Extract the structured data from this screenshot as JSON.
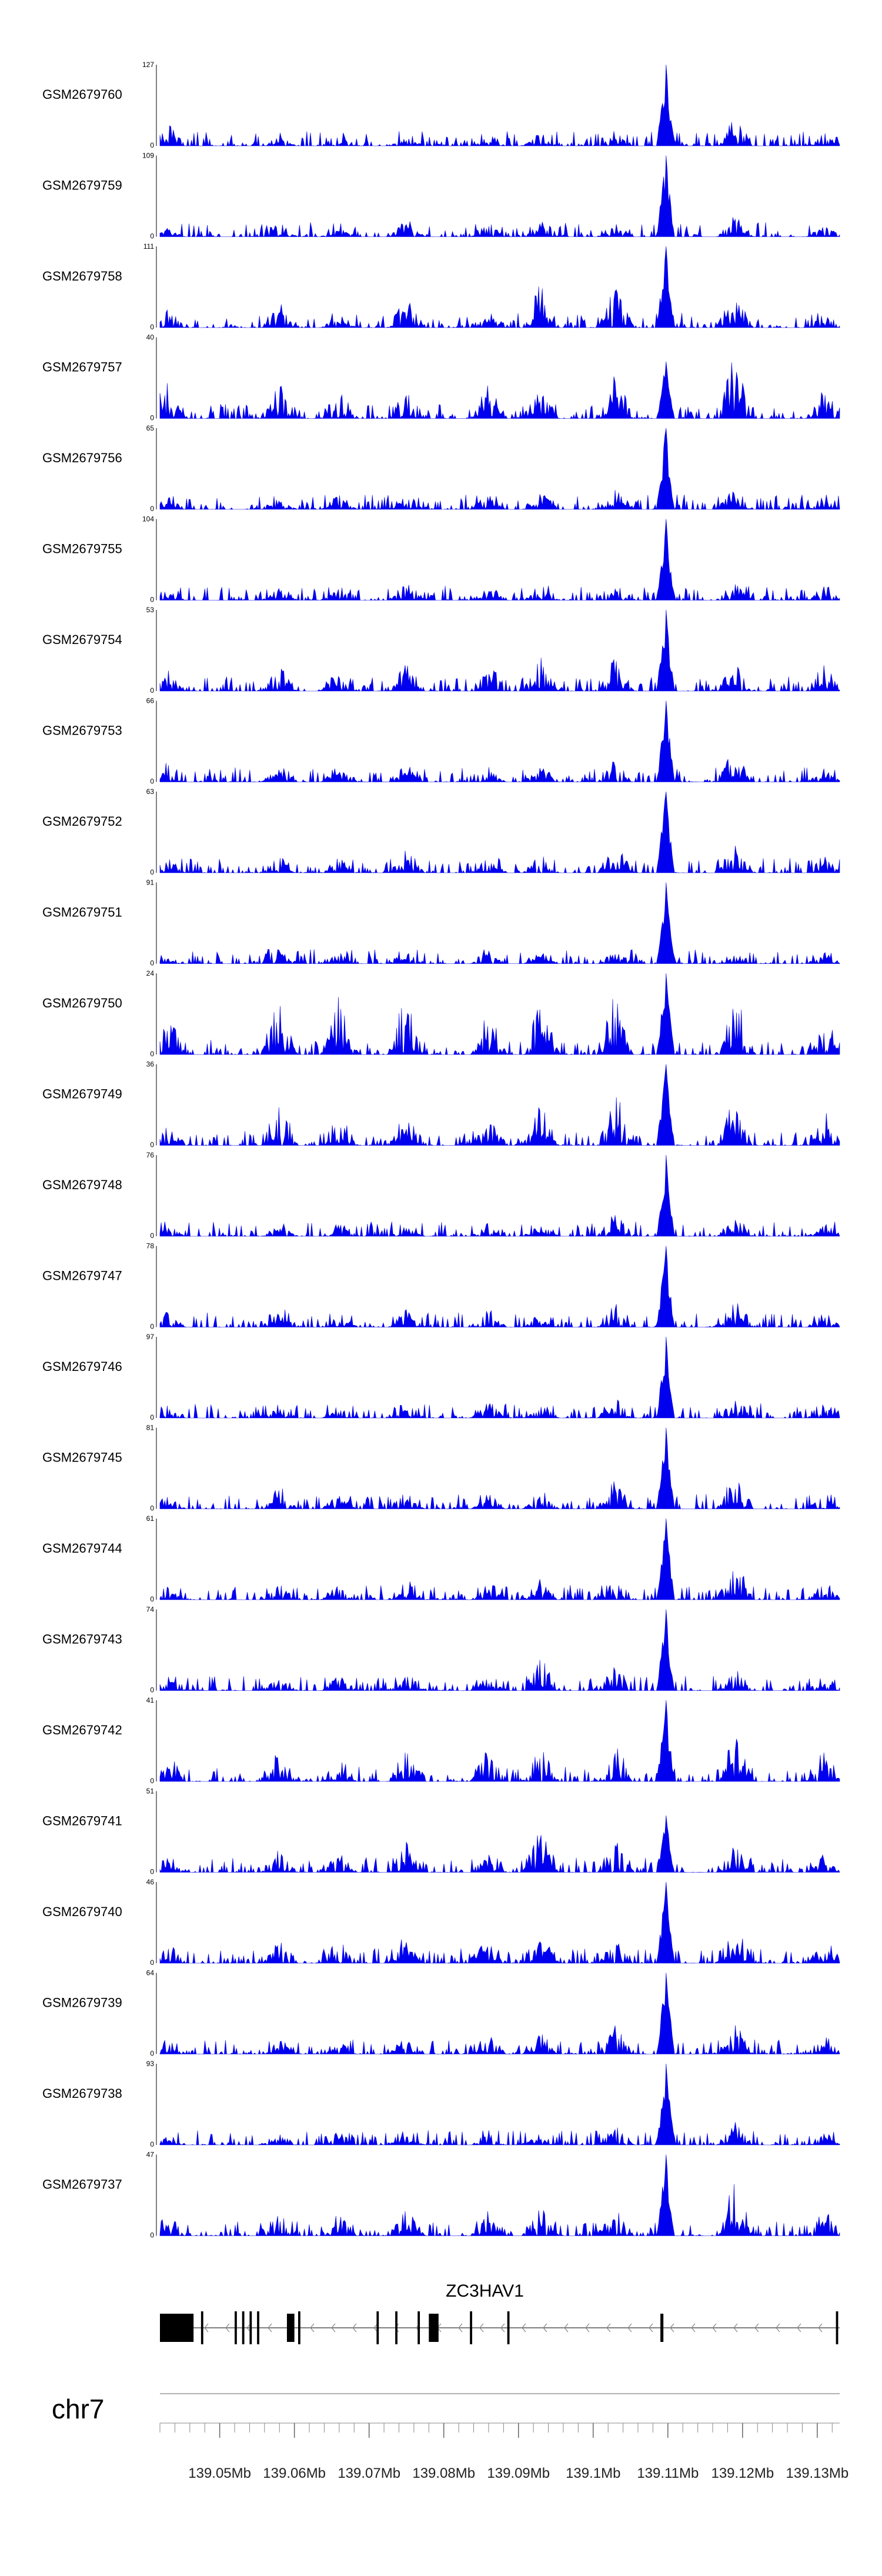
{
  "chart_data": {
    "type": "area",
    "title": "",
    "chromosome": "chr7",
    "region_mb": [
      139.042,
      139.133
    ],
    "axis_ticks": [
      "139.05Mb",
      "139.06Mb",
      "139.07Mb",
      "139.08Mb",
      "139.09Mb",
      "139.1Mb",
      "139.11Mb",
      "139.12Mb",
      "139.13Mb"
    ],
    "axis_tick_values_mb": [
      139.05,
      139.06,
      139.07,
      139.08,
      139.09,
      139.1,
      139.11,
      139.12,
      139.13
    ],
    "gene": {
      "name": "ZC3HAV1",
      "strand": "-",
      "start_mb": 139.042,
      "end_mb": 139.133,
      "exons_mb": [
        [
          139.042,
          139.0465
        ],
        [
          139.0475,
          139.0478
        ],
        [
          139.052,
          139.0523
        ],
        [
          139.053,
          139.0533
        ],
        [
          139.054,
          139.0543
        ],
        [
          139.055,
          139.0553
        ],
        [
          139.059,
          139.06
        ],
        [
          139.0605,
          139.0608
        ],
        [
          139.071,
          139.0713
        ],
        [
          139.0735,
          139.0738
        ],
        [
          139.0765,
          139.0768
        ],
        [
          139.078,
          139.0793
        ],
        [
          139.0835,
          139.0838
        ],
        [
          139.0885,
          139.0888
        ],
        [
          139.109,
          139.1094
        ],
        [
          139.1325,
          139.1328
        ]
      ],
      "thick_exon_mb": [
        [
          139.042,
          139.0465
        ],
        [
          139.059,
          139.06
        ],
        [
          139.078,
          139.0793
        ],
        [
          139.109,
          139.1094
        ]
      ]
    },
    "fill_color": "#0000ee",
    "peak_anchors_mb": [
      139.043,
      139.058,
      139.066,
      139.075,
      139.086,
      139.093,
      139.103,
      139.1097,
      139.119,
      139.131
    ],
    "tracks": [
      {
        "name": "GSM2679760",
        "ymax": "127",
        "ymin": "0",
        "max": 127,
        "peaks": [
          0.35,
          0.12,
          0.15,
          0.1,
          0.12,
          0.18,
          0.2,
          1.0,
          0.4,
          0.15
        ],
        "seed": 1
      },
      {
        "name": "GSM2679759",
        "ymax": "109",
        "ymin": "0",
        "max": 109,
        "peaks": [
          0.1,
          0.18,
          0.12,
          0.25,
          0.2,
          0.22,
          0.18,
          1.0,
          0.28,
          0.15
        ],
        "seed": 2
      },
      {
        "name": "GSM2679758",
        "ymax": "111",
        "ymin": "0",
        "max": 111,
        "peaks": [
          0.25,
          0.38,
          0.15,
          0.42,
          0.3,
          0.6,
          0.55,
          1.0,
          0.55,
          0.2
        ],
        "seed": 3
      },
      {
        "name": "GSM2679757",
        "ymax": "40",
        "ymin": "0",
        "max": 40,
        "peaks": [
          0.55,
          0.45,
          0.4,
          0.55,
          0.45,
          0.5,
          0.6,
          0.7,
          0.95,
          0.45
        ],
        "seed": 4
      },
      {
        "name": "GSM2679756",
        "ymax": "65",
        "ymin": "0",
        "max": 65,
        "peaks": [
          0.25,
          0.15,
          0.2,
          0.22,
          0.18,
          0.25,
          0.3,
          1.0,
          0.3,
          0.2
        ],
        "seed": 5
      },
      {
        "name": "GSM2679755",
        "ymax": "104",
        "ymin": "0",
        "max": 104,
        "peaks": [
          0.12,
          0.15,
          0.18,
          0.25,
          0.18,
          0.15,
          0.2,
          1.0,
          0.22,
          0.15
        ],
        "seed": 6
      },
      {
        "name": "GSM2679754",
        "ymax": "53",
        "ymin": "0",
        "max": 53,
        "peaks": [
          0.3,
          0.35,
          0.3,
          0.38,
          0.4,
          0.45,
          0.45,
          1.0,
          0.45,
          0.4
        ],
        "seed": 7
      },
      {
        "name": "GSM2679753",
        "ymax": "66",
        "ymin": "0",
        "max": 66,
        "peaks": [
          0.35,
          0.2,
          0.22,
          0.25,
          0.2,
          0.2,
          0.3,
          1.0,
          0.45,
          0.2
        ],
        "seed": 8
      },
      {
        "name": "GSM2679752",
        "ymax": "63",
        "ymin": "0",
        "max": 63,
        "peaks": [
          0.2,
          0.22,
          0.2,
          0.3,
          0.2,
          0.25,
          0.4,
          1.0,
          0.35,
          0.25
        ],
        "seed": 9
      },
      {
        "name": "GSM2679751",
        "ymax": "91",
        "ymin": "0",
        "max": 91,
        "peaks": [
          0.1,
          0.2,
          0.12,
          0.15,
          0.12,
          0.15,
          0.18,
          1.0,
          0.2,
          0.15
        ],
        "seed": 10
      },
      {
        "name": "GSM2679750",
        "ymax": "24",
        "ymin": "0",
        "max": 24,
        "peaks": [
          0.55,
          0.85,
          0.75,
          0.85,
          0.6,
          0.7,
          0.9,
          1.0,
          0.85,
          0.6
        ],
        "seed": 11
      },
      {
        "name": "GSM2679749",
        "ymax": "36",
        "ymin": "0",
        "max": 36,
        "peaks": [
          0.45,
          0.65,
          0.45,
          0.55,
          0.45,
          0.55,
          0.7,
          1.0,
          0.65,
          0.45
        ],
        "seed": 12
      },
      {
        "name": "GSM2679748",
        "ymax": "76",
        "ymin": "0",
        "max": 76,
        "peaks": [
          0.15,
          0.2,
          0.2,
          0.22,
          0.18,
          0.2,
          0.35,
          1.0,
          0.25,
          0.18
        ],
        "seed": 13
      },
      {
        "name": "GSM2679747",
        "ymax": "78",
        "ymin": "0",
        "max": 78,
        "peaks": [
          0.2,
          0.35,
          0.18,
          0.25,
          0.25,
          0.2,
          0.3,
          1.0,
          0.38,
          0.2
        ],
        "seed": 14
      },
      {
        "name": "GSM2679746",
        "ymax": "97",
        "ymin": "0",
        "max": 97,
        "peaks": [
          0.12,
          0.15,
          0.18,
          0.25,
          0.22,
          0.2,
          0.25,
          1.0,
          0.28,
          0.15
        ],
        "seed": 15
      },
      {
        "name": "GSM2679745",
        "ymax": "81",
        "ymin": "0",
        "max": 81,
        "peaks": [
          0.18,
          0.3,
          0.2,
          0.25,
          0.2,
          0.25,
          0.4,
          1.0,
          0.5,
          0.2
        ],
        "seed": 16
      },
      {
        "name": "GSM2679744",
        "ymax": "61",
        "ymin": "0",
        "max": 61,
        "peaks": [
          0.18,
          0.2,
          0.2,
          0.3,
          0.25,
          0.3,
          0.35,
          1.0,
          0.55,
          0.25
        ],
        "seed": 17
      },
      {
        "name": "GSM2679743",
        "ymax": "74",
        "ymin": "0",
        "max": 74,
        "peaks": [
          0.15,
          0.22,
          0.2,
          0.25,
          0.2,
          0.45,
          0.35,
          1.0,
          0.3,
          0.2
        ],
        "seed": 18
      },
      {
        "name": "GSM2679742",
        "ymax": "41",
        "ymin": "0",
        "max": 41,
        "peaks": [
          0.4,
          0.45,
          0.35,
          0.45,
          0.45,
          0.5,
          0.55,
          1.0,
          0.65,
          0.45
        ],
        "seed": 19
      },
      {
        "name": "GSM2679741",
        "ymax": "51",
        "ymin": "0",
        "max": 51,
        "peaks": [
          0.2,
          0.3,
          0.25,
          0.45,
          0.3,
          0.65,
          0.45,
          0.7,
          0.35,
          0.25
        ],
        "seed": 20
      },
      {
        "name": "GSM2679740",
        "ymax": "46",
        "ymin": "0",
        "max": 46,
        "peaks": [
          0.3,
          0.35,
          0.35,
          0.4,
          0.35,
          0.4,
          0.45,
          1.0,
          0.55,
          0.35
        ],
        "seed": 21
      },
      {
        "name": "GSM2679739",
        "ymax": "64",
        "ymin": "0",
        "max": 64,
        "peaks": [
          0.2,
          0.25,
          0.2,
          0.25,
          0.25,
          0.3,
          0.4,
          1.0,
          0.4,
          0.25
        ],
        "seed": 22
      },
      {
        "name": "GSM2679738",
        "ymax": "93",
        "ymin": "0",
        "max": 93,
        "peaks": [
          0.12,
          0.15,
          0.18,
          0.28,
          0.15,
          0.15,
          0.25,
          1.0,
          0.3,
          0.15
        ],
        "seed": 23
      },
      {
        "name": "GSM2679737",
        "ymax": "47",
        "ymin": "0",
        "max": 47,
        "peaks": [
          0.3,
          0.3,
          0.3,
          0.4,
          0.35,
          0.4,
          0.45,
          1.0,
          0.75,
          0.35
        ],
        "seed": 24
      }
    ]
  }
}
